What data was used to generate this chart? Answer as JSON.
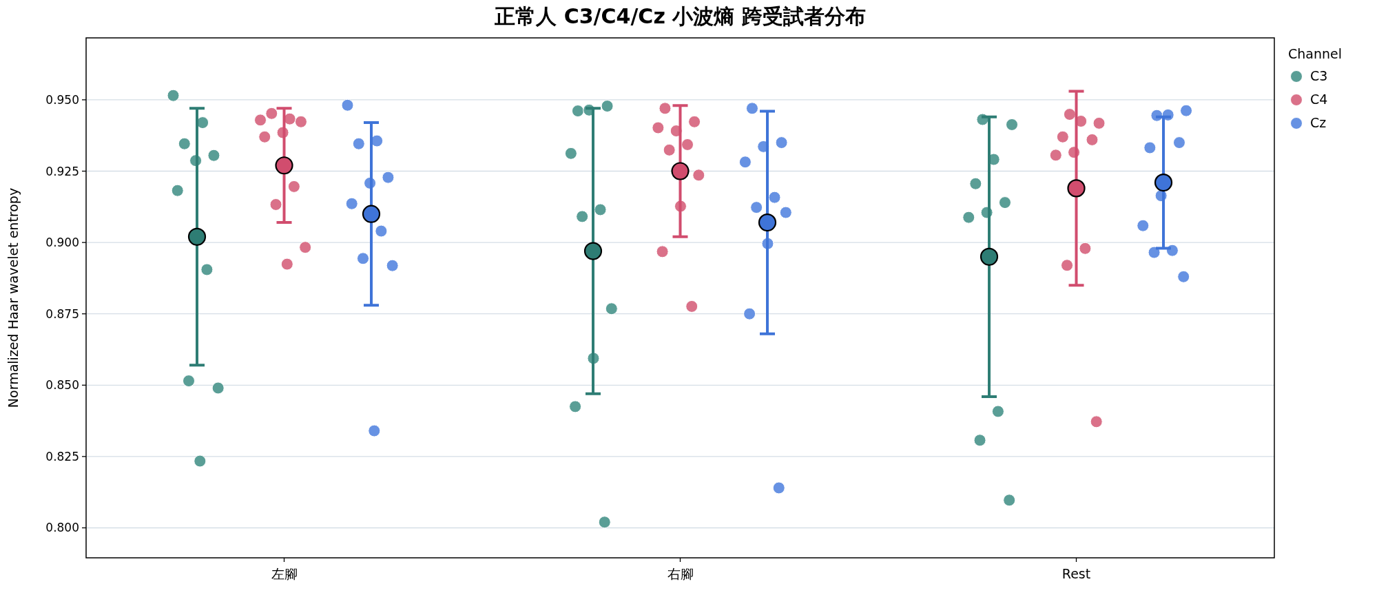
{
  "chart_data": {
    "type": "scatter",
    "title": "正常人 C3/C4/Cz 小波熵 跨受試者分布",
    "ylabel": "Normalized Haar wavelet entropy",
    "legend_title": "Channel",
    "legend": "top right",
    "grid": "y",
    "marker": "circle",
    "categories": [
      "左腳",
      "右腳",
      "Rest"
    ],
    "ylim": [
      0.7895,
      0.9717
    ],
    "yticks": [
      {
        "value": 0.8,
        "label": "0.800"
      },
      {
        "value": 0.825,
        "label": "0.825"
      },
      {
        "value": 0.85,
        "label": "0.850"
      },
      {
        "value": 0.875,
        "label": "0.875"
      },
      {
        "value": 0.9,
        "label": "0.900"
      },
      {
        "value": 0.925,
        "label": "0.925"
      },
      {
        "value": 0.95,
        "label": "0.950"
      }
    ],
    "series": [
      {
        "name": "C3",
        "color": "#5a9e96",
        "x": [
          "左腳",
          "左腳",
          "左腳",
          "左腳",
          "左腳",
          "左腳",
          "左腳",
          "左腳",
          "左腳",
          "左腳",
          "右腳",
          "右腳",
          "右腳",
          "右腳",
          "右腳",
          "右腳",
          "右腳",
          "右腳",
          "右腳",
          "右腳",
          "Rest",
          "Rest",
          "Rest",
          "Rest",
          "Rest",
          "Rest",
          "Rest",
          "Rest",
          "Rest",
          "Rest"
        ],
        "values": [
          0.9515,
          0.942,
          0.9346,
          0.9305,
          0.9287,
          0.9182,
          0.8905,
          0.8515,
          0.849,
          0.8234,
          0.9461,
          0.9478,
          0.9464,
          0.9312,
          0.9115,
          0.9091,
          0.8768,
          0.8594,
          0.8425,
          0.802,
          0.9431,
          0.9413,
          0.9291,
          0.9206,
          0.914,
          0.9105,
          0.9088,
          0.8408,
          0.8307,
          0.8097
        ]
      },
      {
        "name": "C4",
        "color": "#da7189",
        "x": [
          "左腳",
          "左腳",
          "左腳",
          "左腳",
          "左腳",
          "左腳",
          "左腳",
          "左腳",
          "左腳",
          "左腳",
          "右腳",
          "右腳",
          "右腳",
          "右腳",
          "右腳",
          "右腳",
          "右腳",
          "右腳",
          "右腳",
          "右腳",
          "Rest",
          "Rest",
          "Rest",
          "Rest",
          "Rest",
          "Rest",
          "Rest",
          "Rest",
          "Rest",
          "Rest"
        ],
        "values": [
          0.9429,
          0.9433,
          0.9452,
          0.9423,
          0.9385,
          0.937,
          0.9196,
          0.9133,
          0.8983,
          0.8924,
          0.947,
          0.9423,
          0.9391,
          0.9402,
          0.9343,
          0.9324,
          0.9236,
          0.9127,
          0.8968,
          0.8776,
          0.9449,
          0.9418,
          0.9425,
          0.937,
          0.936,
          0.9316,
          0.9306,
          0.8979,
          0.892,
          0.8372
        ]
      },
      {
        "name": "Cz",
        "color": "#6792e3",
        "x": [
          "左腳",
          "左腳",
          "左腳",
          "左腳",
          "左腳",
          "左腳",
          "左腳",
          "左腳",
          "左腳",
          "左腳",
          "右腳",
          "右腳",
          "右腳",
          "右腳",
          "右腳",
          "右腳",
          "右腳",
          "右腳",
          "右腳",
          "右腳",
          "Rest",
          "Rest",
          "Rest",
          "Rest",
          "Rest",
          "Rest",
          "Rest",
          "Rest",
          "Rest",
          "Rest"
        ],
        "values": [
          0.9481,
          0.9356,
          0.9346,
          0.9228,
          0.9208,
          0.9136,
          0.904,
          0.8944,
          0.8919,
          0.834,
          0.947,
          0.935,
          0.9336,
          0.9282,
          0.9158,
          0.9123,
          0.9105,
          0.8996,
          0.875,
          0.814,
          0.9445,
          0.9462,
          0.9447,
          0.9332,
          0.935,
          0.9164,
          0.9059,
          0.8972,
          0.8965,
          0.888
        ]
      },
      {
        "color": "#2e7d74",
        "x": [
          "左腳",
          "右腳",
          "Rest"
        ],
        "values": [
          0.902,
          0.897,
          0.895
        ],
        "errors": [
          0.045,
          0.05,
          0.049
        ]
      },
      {
        "color": "#d14d6e",
        "x": [
          "左腳",
          "右腳",
          "Rest"
        ],
        "values": [
          0.927,
          0.925,
          0.919
        ],
        "errors": [
          0.02,
          0.023,
          0.034
        ]
      },
      {
        "color": "#3f74d8",
        "x": [
          "左腳",
          "右腳",
          "Rest"
        ],
        "values": [
          0.91,
          0.907,
          0.921
        ],
        "errors": [
          0.032,
          0.039,
          0.023
        ]
      }
    ]
  }
}
